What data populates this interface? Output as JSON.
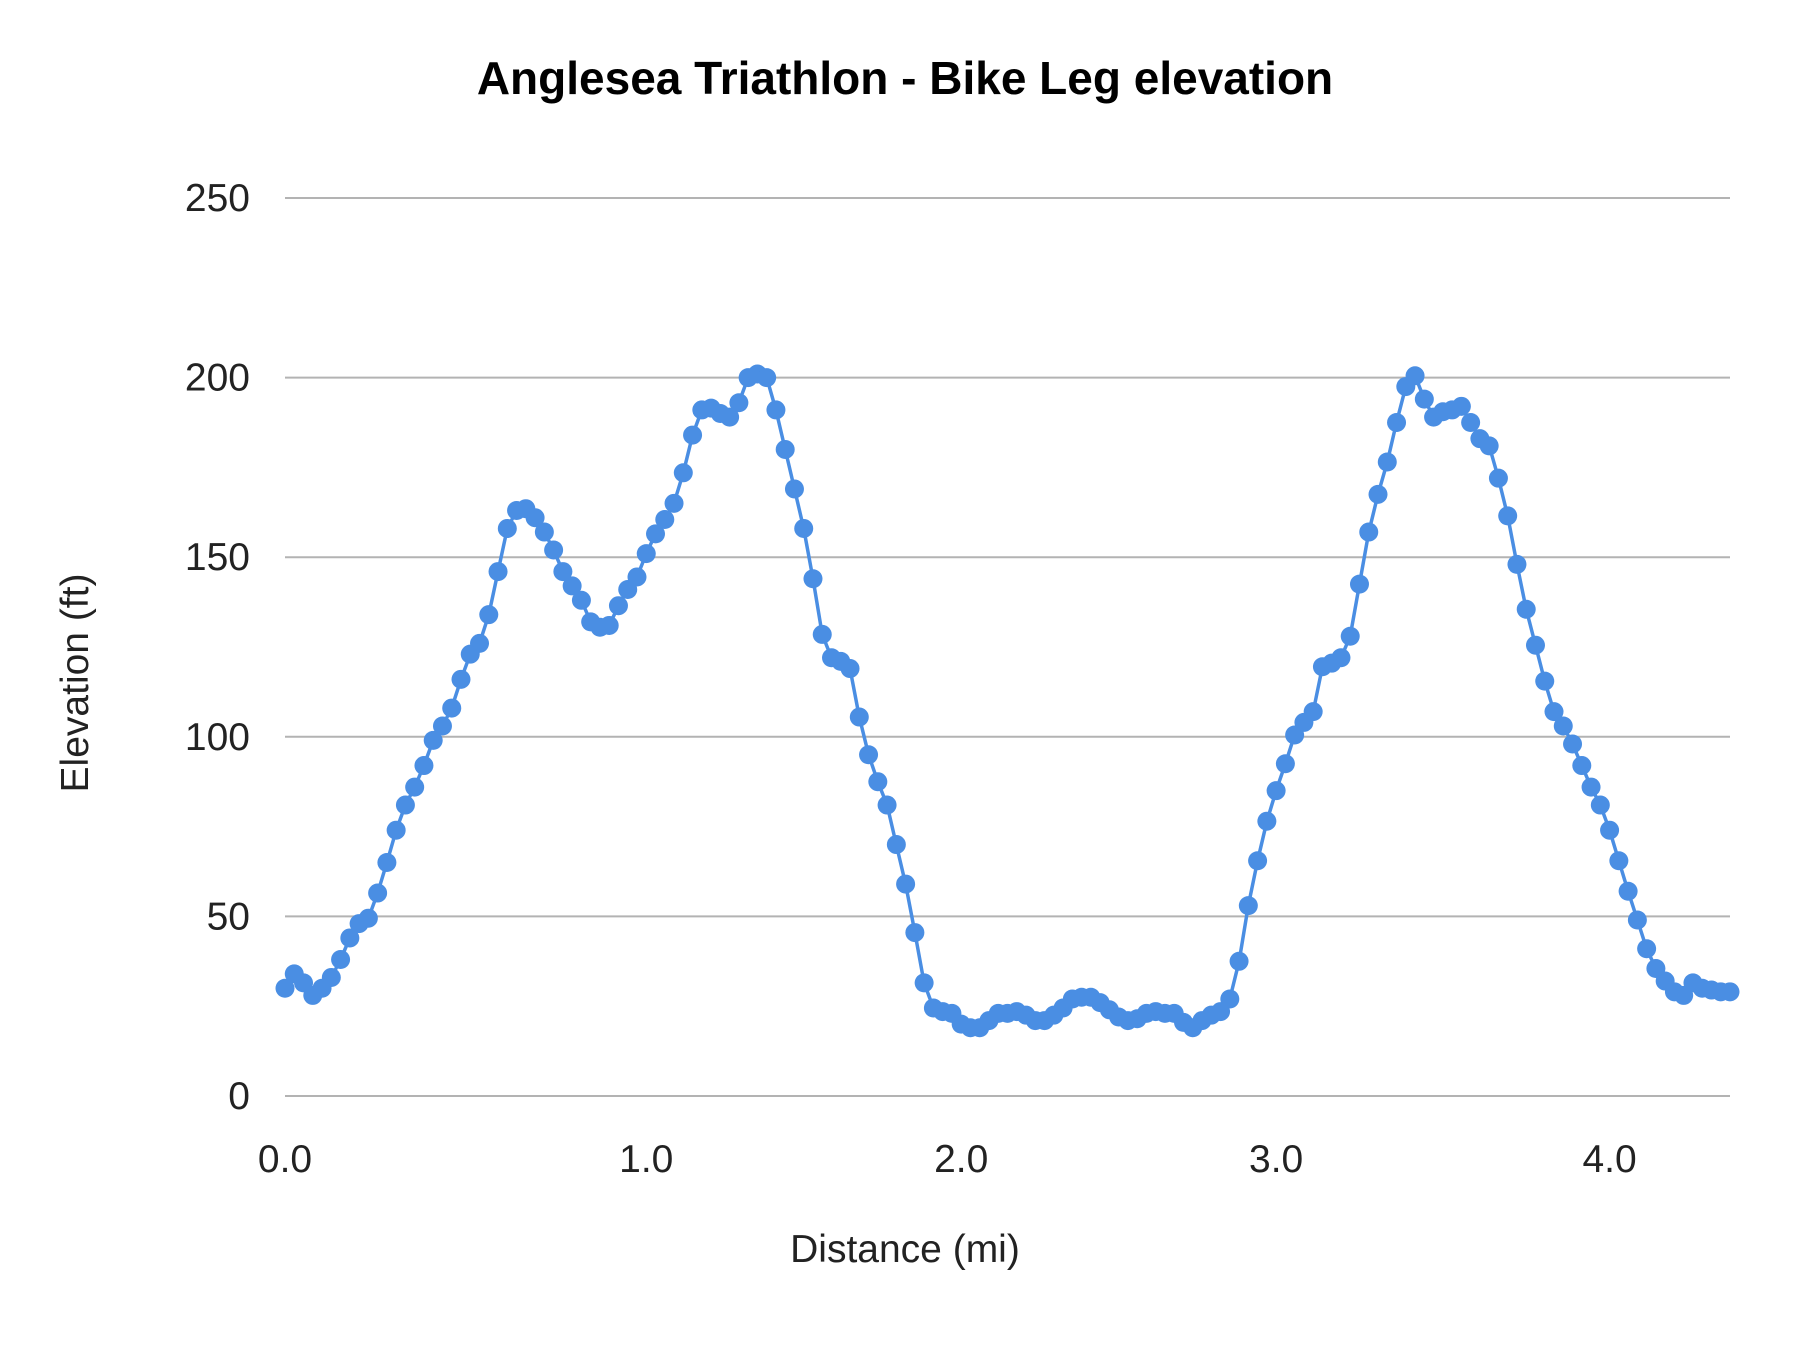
{
  "chart_data": {
    "type": "line",
    "title": "Anglesea Triathlon  - Bike Leg elevation",
    "xlabel": "Distance (mi)",
    "ylabel": "Elevation (ft)",
    "ylim": [
      0,
      250
    ],
    "y_ticks": [
      "0",
      "50",
      "100",
      "150",
      "200",
      "250"
    ],
    "x_ticks": [
      {
        "label": "0.0",
        "index": 0
      },
      {
        "label": "1.0",
        "index": 39
      },
      {
        "label": "2.0",
        "index": 73
      },
      {
        "label": "3.0",
        "index": 107
      },
      {
        "label": "4.0",
        "index": 143
      }
    ],
    "grid": true,
    "legend": "none",
    "markers": true,
    "series_color": "#4a8ee3",
    "values": [
      30,
      34,
      31.5,
      28,
      30,
      33,
      38,
      44,
      48,
      49.5,
      56.5,
      65,
      74,
      81,
      86,
      92,
      99,
      103,
      108,
      116,
      123,
      126,
      134,
      146,
      158,
      163,
      163.5,
      161,
      157,
      152,
      146,
      142,
      138,
      132,
      130.5,
      131,
      136.5,
      141,
      144.5,
      151,
      156.5,
      160.5,
      165,
      173.5,
      184,
      191,
      191.5,
      190,
      189,
      193,
      200,
      201,
      200,
      191,
      180,
      169,
      158,
      144,
      128.5,
      122,
      121,
      119,
      105.5,
      95,
      87.5,
      81,
      70,
      59,
      45.5,
      31.5,
      24.5,
      23.5,
      23,
      20,
      19,
      19,
      21,
      23,
      23,
      23.5,
      22.5,
      21,
      21,
      22.5,
      24.5,
      27,
      27.5,
      27.5,
      26,
      24,
      22,
      21,
      21.5,
      23,
      23.5,
      23,
      23,
      20.5,
      19,
      21,
      22.5,
      23.5,
      27,
      37.5,
      53,
      65.5,
      76.5,
      85,
      92.5,
      100.5,
      104,
      107,
      119.5,
      120.5,
      122,
      128,
      142.5,
      157,
      167.5,
      176.5,
      187.5,
      197.5,
      200.5,
      194,
      189,
      190.5,
      191,
      192,
      187.5,
      183,
      181,
      172,
      161.5,
      148,
      135.5,
      125.5,
      115.5,
      107,
      103,
      98,
      92,
      86,
      81,
      74,
      65.5,
      57,
      49,
      41,
      35.5,
      32,
      29,
      28,
      31.5,
      30,
      29.5,
      29,
      29
    ]
  }
}
